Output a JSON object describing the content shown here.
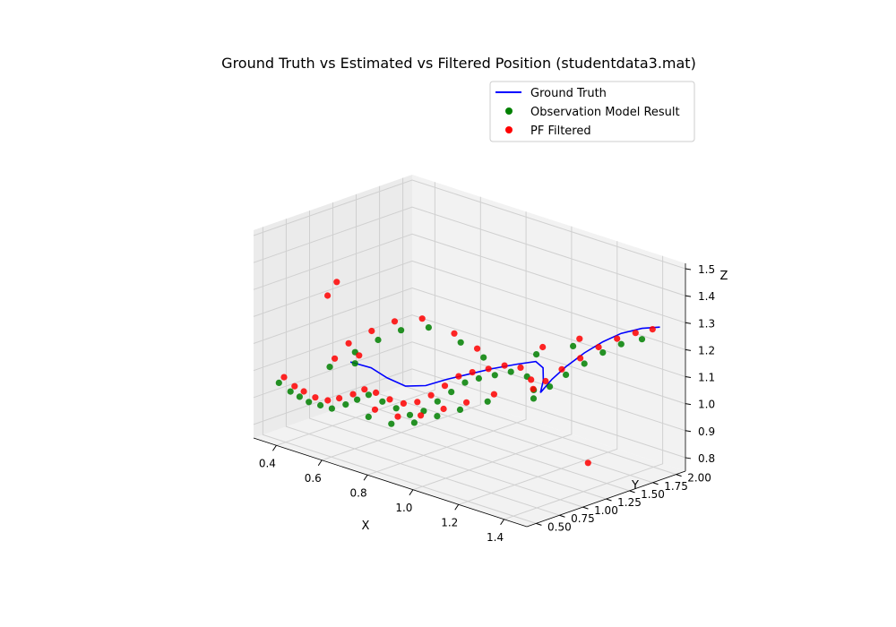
{
  "chart_data": {
    "type": "scatter",
    "subtype": "3d-scatter-with-line",
    "title": "Ground Truth vs Estimated vs Filtered Position (studentdata3.mat)",
    "xlabel": "X",
    "ylabel": "Y",
    "zlabel": "Z",
    "x_ticks": [
      "0.4",
      "0.6",
      "0.8",
      "1.0",
      "1.2",
      "1.4"
    ],
    "y_ticks": [
      "0.50",
      "0.75",
      "1.00",
      "1.25",
      "1.50",
      "1.75",
      "2.00"
    ],
    "z_ticks": [
      "0.8",
      "0.9",
      "1.0",
      "1.1",
      "1.2",
      "1.3",
      "1.4",
      "1.5"
    ],
    "xlim": [
      0.3,
      1.5
    ],
    "ylim": [
      0.4,
      2.1
    ],
    "zlim": [
      0.75,
      1.52
    ],
    "grid": true,
    "legend_position": "top-right",
    "series": [
      {
        "name": "Ground Truth",
        "kind": "line",
        "color": "#0000ff",
        "points": [
          [
            0.5,
            0.95,
            1.02
          ],
          [
            0.55,
            1.05,
            1.0
          ],
          [
            0.6,
            1.1,
            0.97
          ],
          [
            0.66,
            1.15,
            0.95
          ],
          [
            0.72,
            1.22,
            0.96
          ],
          [
            0.78,
            1.3,
            0.99
          ],
          [
            0.85,
            1.38,
            1.02
          ],
          [
            0.92,
            1.45,
            1.05
          ],
          [
            1.0,
            1.52,
            1.08
          ],
          [
            1.06,
            1.57,
            1.1
          ],
          [
            1.1,
            1.55,
            1.09
          ],
          [
            1.13,
            1.48,
            1.06
          ],
          [
            1.15,
            1.4,
            1.03
          ],
          [
            1.16,
            1.5,
            1.07
          ],
          [
            1.18,
            1.6,
            1.11
          ],
          [
            1.22,
            1.7,
            1.16
          ],
          [
            1.26,
            1.8,
            1.2
          ],
          [
            1.3,
            1.9,
            1.23
          ],
          [
            1.35,
            2.0,
            1.25
          ],
          [
            1.4,
            2.07,
            1.26
          ]
        ]
      },
      {
        "name": "Observation Model Result",
        "kind": "scatter",
        "color": "#008000",
        "points": [
          [
            0.35,
            0.55,
            0.95
          ],
          [
            0.38,
            0.6,
            0.92
          ],
          [
            0.4,
            0.65,
            0.9
          ],
          [
            0.42,
            0.7,
            0.88
          ],
          [
            0.45,
            0.75,
            0.87
          ],
          [
            0.48,
            0.8,
            0.86
          ],
          [
            0.52,
            0.85,
            0.88
          ],
          [
            0.55,
            0.9,
            0.9
          ],
          [
            0.58,
            0.95,
            0.92
          ],
          [
            0.62,
            1.0,
            0.9
          ],
          [
            0.66,
            1.05,
            0.88
          ],
          [
            0.7,
            1.1,
            0.86
          ],
          [
            0.74,
            1.15,
            0.88
          ],
          [
            0.78,
            1.2,
            0.92
          ],
          [
            0.82,
            1.25,
            0.96
          ],
          [
            0.86,
            1.3,
            1.0
          ],
          [
            0.9,
            1.35,
            1.02
          ],
          [
            0.95,
            1.4,
            1.04
          ],
          [
            1.0,
            1.45,
            1.06
          ],
          [
            1.05,
            1.5,
            1.05
          ],
          [
            1.1,
            1.45,
            1.02
          ],
          [
            1.12,
            1.4,
            1.0
          ],
          [
            1.15,
            1.5,
            1.04
          ],
          [
            1.18,
            1.6,
            1.08
          ],
          [
            1.22,
            1.7,
            1.12
          ],
          [
            1.26,
            1.8,
            1.16
          ],
          [
            1.3,
            1.9,
            1.19
          ],
          [
            1.35,
            2.0,
            1.21
          ],
          [
            0.5,
            1.0,
            1.05
          ],
          [
            0.56,
            1.1,
            1.1
          ],
          [
            0.62,
            1.2,
            1.14
          ],
          [
            0.7,
            1.3,
            1.16
          ],
          [
            0.8,
            1.4,
            1.12
          ],
          [
            0.88,
            1.45,
            1.08
          ],
          [
            0.6,
            0.9,
            0.85
          ],
          [
            0.68,
            0.95,
            0.84
          ],
          [
            0.76,
            1.0,
            0.86
          ],
          [
            0.84,
            1.05,
            0.9
          ],
          [
            0.92,
            1.1,
            0.94
          ],
          [
            1.0,
            1.2,
            0.98
          ],
          [
            0.45,
            0.85,
            1.0
          ],
          [
            0.52,
            0.95,
            1.02
          ],
          [
            1.05,
            1.6,
            1.12
          ],
          [
            1.15,
            1.75,
            1.16
          ]
        ]
      },
      {
        "name": "PF Filtered",
        "kind": "scatter",
        "color": "#ff0000",
        "points": [
          [
            0.36,
            0.58,
            0.97
          ],
          [
            0.39,
            0.62,
            0.94
          ],
          [
            0.41,
            0.67,
            0.92
          ],
          [
            0.44,
            0.72,
            0.9
          ],
          [
            0.47,
            0.78,
            0.89
          ],
          [
            0.5,
            0.83,
            0.9
          ],
          [
            0.54,
            0.88,
            0.92
          ],
          [
            0.57,
            0.93,
            0.94
          ],
          [
            0.6,
            0.98,
            0.93
          ],
          [
            0.64,
            1.03,
            0.91
          ],
          [
            0.68,
            1.08,
            0.9
          ],
          [
            0.72,
            1.13,
            0.91
          ],
          [
            0.76,
            1.18,
            0.94
          ],
          [
            0.8,
            1.23,
            0.98
          ],
          [
            0.84,
            1.28,
            1.02
          ],
          [
            0.88,
            1.33,
            1.04
          ],
          [
            0.93,
            1.38,
            1.06
          ],
          [
            0.98,
            1.43,
            1.08
          ],
          [
            1.03,
            1.48,
            1.08
          ],
          [
            1.08,
            1.47,
            1.05
          ],
          [
            1.11,
            1.42,
            1.03
          ],
          [
            1.14,
            1.48,
            1.06
          ],
          [
            1.17,
            1.58,
            1.1
          ],
          [
            1.21,
            1.68,
            1.14
          ],
          [
            1.25,
            1.78,
            1.18
          ],
          [
            1.29,
            1.88,
            1.21
          ],
          [
            1.33,
            1.98,
            1.23
          ],
          [
            1.38,
            2.04,
            1.25
          ],
          [
            0.48,
            0.98,
            1.08
          ],
          [
            0.54,
            1.08,
            1.13
          ],
          [
            0.6,
            1.18,
            1.17
          ],
          [
            0.68,
            1.28,
            1.19
          ],
          [
            0.78,
            1.38,
            1.15
          ],
          [
            0.86,
            1.43,
            1.11
          ],
          [
            0.62,
            0.92,
            0.88
          ],
          [
            0.7,
            0.97,
            0.87
          ],
          [
            0.78,
            1.02,
            0.89
          ],
          [
            0.86,
            1.07,
            0.93
          ],
          [
            0.94,
            1.12,
            0.97
          ],
          [
            1.02,
            1.22,
            1.01
          ],
          [
            0.46,
            0.88,
            1.03
          ],
          [
            0.53,
            0.97,
            1.05
          ],
          [
            1.07,
            1.62,
            1.15
          ],
          [
            1.17,
            1.77,
            1.19
          ],
          [
            0.42,
            0.9,
            1.25
          ],
          [
            0.44,
            0.95,
            1.3
          ],
          [
            1.4,
            1.3,
            0.85
          ]
        ]
      }
    ]
  }
}
